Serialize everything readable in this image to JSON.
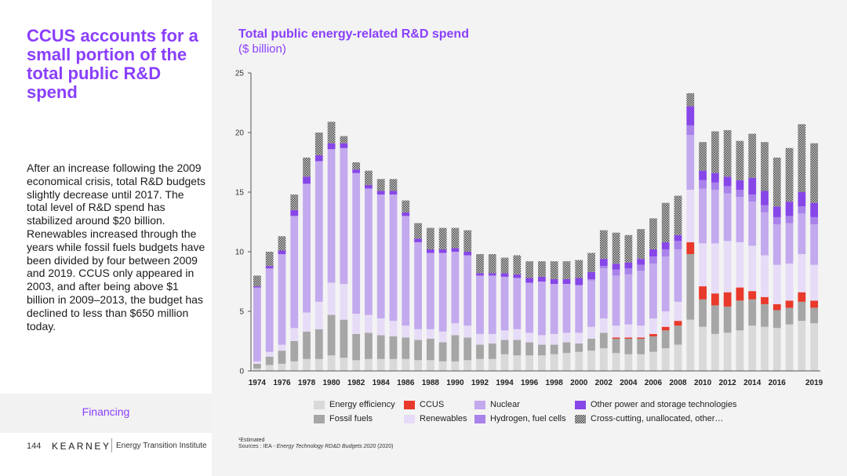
{
  "left": {
    "headline": "CCUS accounts for a small portion of the total public R&D spend",
    "body": "After an increase following the 2009 economical crisis, total R&D budgets slightly decrease until 2017. The total level of R&D spend has stabilized around $20 billion. Renewables increased through the years while fossil fuels budgets have been divided by four between 2009 and 2019. CCUS only appeared in 2003, and after being above $1 billion in 2009–2013, the budget has declined to less than $650 million today.",
    "section": "Financing"
  },
  "footer": {
    "page_number": "144",
    "logo": "KEARNEY",
    "institute": "Energy Transition Institute",
    "footnote": "¹Estimated",
    "sources_prefix": "Sources : IEA  - ",
    "sources_title": "Energy Technology RD&D Budgets 2020",
    "sources_suffix": " (2020)"
  },
  "colors": {
    "accent": "#8a3ffc",
    "energy_efficiency": "#d9d9d9",
    "fossil_fuels": "#a6a6a6",
    "ccus": "#e8392a",
    "renewables": "#e6dcf7",
    "nuclear": "#c3a9ee",
    "hydrogen": "#a982ea",
    "other_power": "#8746e8",
    "cross_cutting": "#555555"
  },
  "chart_data": {
    "type": "bar",
    "stacked": true,
    "title": "Total public energy-related R&D spend",
    "subtitle": "($ billion)",
    "ylim": [
      0,
      25
    ],
    "yticks": [
      0,
      5,
      10,
      15,
      20,
      25
    ],
    "x": [
      1974,
      1975,
      1976,
      1977,
      1978,
      1979,
      1980,
      1981,
      1982,
      1983,
      1984,
      1985,
      1986,
      1987,
      1988,
      1989,
      1990,
      1991,
      1992,
      1993,
      1994,
      1995,
      1996,
      1997,
      1998,
      1999,
      2000,
      2001,
      2002,
      2003,
      2004,
      2005,
      2006,
      2007,
      2008,
      2009,
      2010,
      2011,
      2012,
      2013,
      2014,
      2015,
      2016,
      2017,
      2018,
      2019
    ],
    "x_labels": [
      "1974",
      "1976",
      "1978",
      "1980",
      "1982",
      "1984",
      "1986",
      "1988",
      "1990",
      "1992",
      "1994",
      "1996",
      "1998",
      "2000",
      "2002",
      "2004",
      "2006",
      "2008",
      "2010",
      "2012",
      "2014",
      "2016",
      "2019"
    ],
    "legend": [
      {
        "key": "energy_efficiency",
        "label": "Energy efficiency",
        "color": "#d9d9d9"
      },
      {
        "key": "ccus",
        "label": "CCUS",
        "color": "#e8392a"
      },
      {
        "key": "nuclear",
        "label": "Nuclear",
        "color": "#c3a9ee"
      },
      {
        "key": "other_power",
        "label": "Other power and storage technologies",
        "color": "#8746e8"
      },
      {
        "key": "fossil_fuels",
        "label": "Fossil fuels",
        "color": "#a6a6a6"
      },
      {
        "key": "renewables",
        "label": "Renewables",
        "color": "#e6dcf7"
      },
      {
        "key": "hydrogen",
        "label": "Hydrogen, fuel cells",
        "color": "#a982ea"
      },
      {
        "key": "cross_cutting",
        "label": "Cross-cutting, unallocated, other…",
        "color": "#555555",
        "pattern": "checker"
      }
    ],
    "series": [
      {
        "key": "energy_efficiency",
        "name": "Energy efficiency",
        "color": "#d9d9d9",
        "values": [
          0.2,
          0.5,
          0.6,
          0.8,
          1.0,
          1.0,
          1.3,
          1.1,
          0.9,
          1.0,
          1.0,
          1.0,
          1.0,
          0.9,
          0.9,
          0.8,
          0.8,
          0.9,
          1.0,
          1.0,
          1.4,
          1.3,
          1.3,
          1.3,
          1.4,
          1.5,
          1.6,
          1.7,
          1.9,
          1.5,
          1.4,
          1.4,
          1.6,
          1.9,
          2.2,
          4.3,
          3.7,
          3.1,
          3.2,
          3.4,
          3.8,
          3.7,
          3.6,
          3.9,
          4.2,
          4.0
        ]
      },
      {
        "key": "fossil_fuels",
        "name": "Fossil fuels",
        "color": "#a6a6a6",
        "values": [
          0.4,
          0.7,
          1.1,
          1.7,
          2.3,
          2.5,
          3.4,
          3.2,
          2.2,
          2.2,
          2.0,
          1.9,
          1.8,
          1.7,
          1.8,
          1.6,
          2.2,
          1.9,
          1.2,
          1.3,
          1.2,
          1.3,
          1.1,
          0.9,
          0.8,
          0.9,
          0.7,
          1.0,
          1.3,
          1.2,
          1.3,
          1.3,
          1.3,
          1.5,
          1.6,
          5.5,
          2.3,
          2.4,
          2.2,
          2.5,
          2.2,
          1.9,
          1.5,
          1.4,
          1.6,
          1.3
        ]
      },
      {
        "key": "ccus",
        "name": "CCUS",
        "color": "#e8392a",
        "values": [
          0,
          0,
          0,
          0,
          0,
          0,
          0,
          0,
          0,
          0,
          0,
          0,
          0,
          0,
          0,
          0,
          0,
          0,
          0,
          0,
          0,
          0,
          0,
          0,
          0,
          0,
          0,
          0,
          0,
          0.1,
          0.1,
          0.1,
          0.2,
          0.3,
          0.4,
          1.0,
          1.1,
          1.0,
          1.2,
          1.1,
          0.7,
          0.6,
          0.5,
          0.6,
          0.8,
          0.6
        ]
      },
      {
        "key": "renewables",
        "name": "Renewables",
        "color": "#e6dcf7",
        "values": [
          0.2,
          0.4,
          0.5,
          1.1,
          1.6,
          2.3,
          2.7,
          3.0,
          1.7,
          1.5,
          1.4,
          1.3,
          1.0,
          0.9,
          0.8,
          0.9,
          1.0,
          1.0,
          0.9,
          0.8,
          0.8,
          0.9,
          0.8,
          0.8,
          0.9,
          0.8,
          0.9,
          1.0,
          1.2,
          1.0,
          1.1,
          1.0,
          1.3,
          1.3,
          1.6,
          4.4,
          3.6,
          4.2,
          4.3,
          3.8,
          3.8,
          3.5,
          3.3,
          3.1,
          3.2,
          3.0
        ]
      },
      {
        "key": "nuclear",
        "name": "Nuclear",
        "color": "#c3a9ee",
        "values": [
          6.2,
          7.0,
          7.6,
          9.4,
          10.8,
          11.8,
          11.2,
          11.4,
          11.8,
          10.6,
          10.4,
          10.6,
          9.2,
          7.3,
          6.4,
          6.6,
          6.0,
          5.9,
          4.9,
          4.9,
          4.5,
          4.3,
          4.2,
          4.5,
          4.2,
          4.1,
          4.0,
          3.9,
          4.2,
          4.2,
          4.2,
          4.6,
          4.6,
          4.6,
          4.4,
          4.6,
          4.6,
          4.5,
          4.0,
          3.8,
          3.7,
          3.6,
          3.4,
          3.4,
          3.4,
          3.4
        ]
      },
      {
        "key": "hydrogen",
        "name": "Hydrogen, fuel cells",
        "color": "#a982ea",
        "values": [
          0,
          0,
          0,
          0,
          0,
          0,
          0,
          0,
          0,
          0,
          0,
          0,
          0,
          0,
          0,
          0,
          0,
          0,
          0,
          0,
          0,
          0,
          0,
          0,
          0,
          0,
          0,
          0.1,
          0.2,
          0.5,
          0.5,
          0.5,
          0.6,
          0.6,
          0.7,
          0.8,
          0.7,
          0.6,
          0.6,
          0.6,
          0.6,
          0.6,
          0.6,
          0.6,
          0.6,
          0.6
        ]
      },
      {
        "key": "other_power",
        "name": "Other power and storage technologies",
        "color": "#8746e8",
        "values": [
          0.1,
          0.2,
          0.3,
          0.5,
          0.6,
          0.5,
          0.5,
          0.4,
          0.3,
          0.3,
          0.3,
          0.3,
          0.3,
          0.3,
          0.3,
          0.3,
          0.3,
          0.3,
          0.2,
          0.2,
          0.3,
          0.3,
          0.4,
          0.4,
          0.4,
          0.4,
          0.6,
          0.6,
          0.6,
          0.5,
          0.5,
          0.5,
          0.6,
          0.6,
          0.5,
          1.6,
          0.8,
          0.8,
          0.8,
          0.8,
          1.4,
          1.2,
          0.9,
          1.2,
          1.2,
          1.2
        ]
      },
      {
        "key": "cross_cutting",
        "name": "Cross-cutting, unallocated, other…",
        "color": "#555555",
        "pattern": "checker",
        "values": [
          0.9,
          1.2,
          1.2,
          1.3,
          1.6,
          1.9,
          1.8,
          0.6,
          0.6,
          1.2,
          1.0,
          1.0,
          1.0,
          1.3,
          1.8,
          1.8,
          1.7,
          1.8,
          1.6,
          1.6,
          1.3,
          1.6,
          1.4,
          1.3,
          1.5,
          1.5,
          1.5,
          1.6,
          2.4,
          2.6,
          2.3,
          2.5,
          2.6,
          3.3,
          3.3,
          1.1,
          2.4,
          3.5,
          3.9,
          3.3,
          3.7,
          4.1,
          4.1,
          4.5,
          5.7,
          5.0
        ]
      }
    ]
  }
}
